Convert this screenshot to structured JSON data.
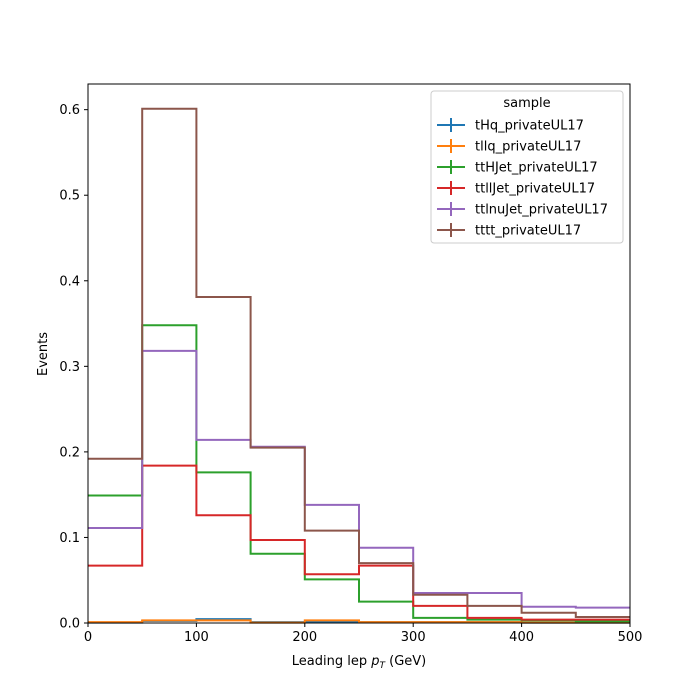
{
  "chart_data": {
    "type": "histogram-step",
    "xlabel_prefix": "Leading lep ",
    "xlabel_var": "p",
    "xlabel_sub": "T",
    "xlabel_suffix": " (GeV)",
    "ylabel": "Events",
    "xlim": [
      0,
      500
    ],
    "ylim": [
      0,
      0.63
    ],
    "xticks": [
      0,
      100,
      200,
      300,
      400,
      500
    ],
    "yticks": [
      0.0,
      0.1,
      0.2,
      0.3,
      0.4,
      0.5,
      0.6
    ],
    "bin_edges": [
      0,
      50,
      100,
      150,
      200,
      250,
      300,
      350,
      400,
      450,
      500
    ],
    "legend_title": "sample",
    "legend_position": "top-right",
    "series": [
      {
        "name": "tHq_privateUL17",
        "color": "#1f77b4",
        "values": [
          0.0005,
          0.0025,
          0.0045,
          0.001,
          0.0015,
          0.001,
          0.001,
          0.001,
          0.0005,
          0.0005
        ]
      },
      {
        "name": "tllq_privateUL17",
        "color": "#ff7f0e",
        "values": [
          0.001,
          0.003,
          0.003,
          0.0005,
          0.003,
          0.001,
          0.001,
          0.001,
          0.0005,
          0.0005
        ]
      },
      {
        "name": "ttHJet_privateUL17",
        "color": "#2ca02c",
        "values": [
          0.149,
          0.348,
          0.176,
          0.081,
          0.051,
          0.025,
          0.006,
          0.004,
          0.003,
          0.002
        ]
      },
      {
        "name": "ttllJet_privateUL17",
        "color": "#d62728",
        "values": [
          0.067,
          0.184,
          0.126,
          0.097,
          0.057,
          0.067,
          0.02,
          0.006,
          0.004,
          0.004
        ]
      },
      {
        "name": "ttlnuJet_privateUL17",
        "color": "#9467bd",
        "values": [
          0.111,
          0.318,
          0.214,
          0.206,
          0.138,
          0.088,
          0.035,
          0.035,
          0.019,
          0.018
        ]
      },
      {
        "name": "tttt_privateUL17",
        "color": "#8c564b",
        "values": [
          0.192,
          0.601,
          0.381,
          0.205,
          0.108,
          0.07,
          0.033,
          0.02,
          0.012,
          0.007
        ]
      }
    ]
  }
}
